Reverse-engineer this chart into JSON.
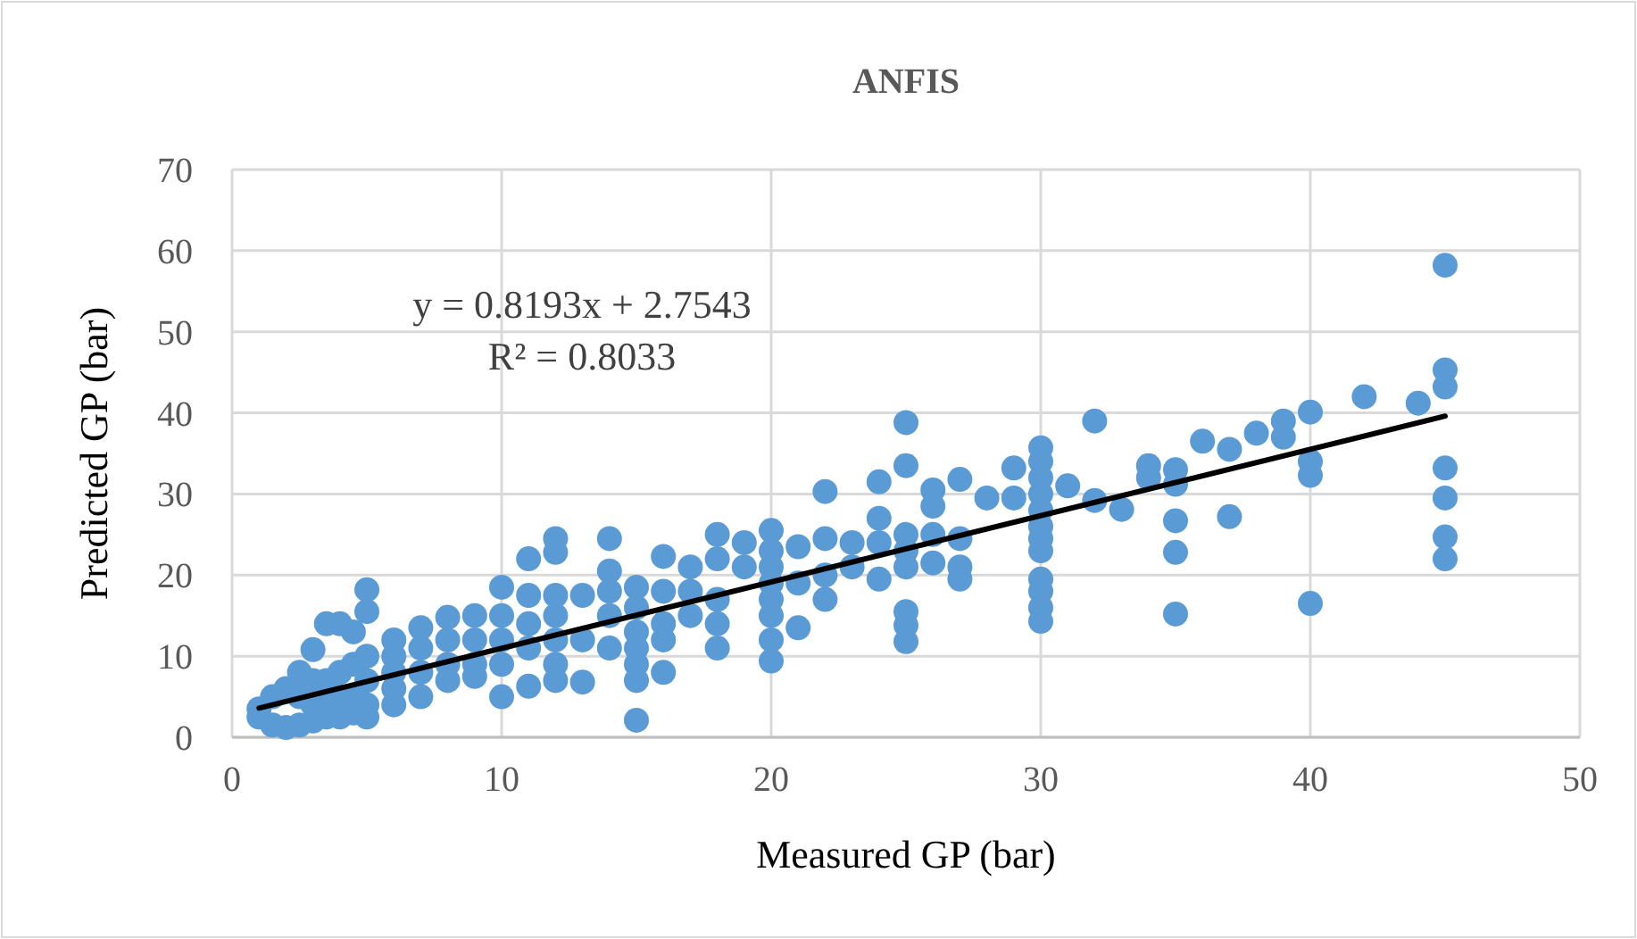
{
  "chart_data": {
    "type": "scatter",
    "title": "ANFIS",
    "xlabel": "Measured GP (bar)",
    "ylabel": "Predicted GP (bar)",
    "xlim": [
      0,
      50
    ],
    "xticks": [
      0,
      10,
      20,
      30,
      40,
      50
    ],
    "ylim": [
      0,
      70
    ],
    "yticks": [
      0,
      10,
      20,
      30,
      40,
      50,
      60,
      70
    ],
    "grid": true,
    "annotations": [
      "y = 0.8193x + 2.7543",
      "R² = 0.8033"
    ],
    "series": [
      {
        "marker": "circle",
        "color": "#5b9bd5",
        "x": [
          45,
          45,
          45,
          45,
          45,
          45,
          45,
          44,
          42,
          40,
          40,
          40,
          40,
          39,
          39,
          38,
          37,
          37,
          36,
          35,
          35,
          35,
          35,
          35,
          34,
          34,
          33,
          32,
          32,
          31,
          30,
          30,
          30,
          30,
          30,
          30,
          30,
          30,
          30,
          30,
          30,
          30,
          29,
          29,
          28,
          27,
          27,
          27,
          27,
          26,
          26,
          26,
          26,
          25,
          25,
          25,
          25,
          25,
          25,
          25,
          25,
          24,
          24,
          24,
          24,
          23,
          23,
          22,
          22,
          22,
          22,
          21,
          21,
          21,
          20,
          20,
          20,
          20,
          20,
          20,
          20,
          20,
          19,
          19,
          18,
          18,
          18,
          18,
          18,
          17,
          17,
          17,
          16,
          16,
          16,
          16,
          16,
          15,
          15,
          15,
          15,
          15,
          15,
          15,
          14,
          14,
          14,
          14,
          14,
          13,
          13,
          13,
          12,
          12,
          12,
          12,
          12,
          12,
          12,
          11,
          11,
          11,
          11,
          11,
          10,
          10,
          10,
          10,
          10,
          9,
          9,
          9,
          9,
          8,
          8,
          8,
          8,
          7,
          7,
          7,
          7,
          6,
          6,
          6,
          6,
          6,
          5,
          5,
          5,
          5,
          5,
          5,
          4.5,
          4.5,
          4.5,
          4.5,
          4,
          4,
          4,
          4,
          3.5,
          3.5,
          3.5,
          3.5,
          3,
          3,
          3,
          3,
          2.5,
          2.5,
          2.5,
          2,
          2,
          1.5,
          1.5,
          1,
          1
        ],
        "values": [
          58.2,
          45.3,
          43.2,
          33.2,
          29.5,
          24.7,
          22,
          41.2,
          42,
          40.1,
          34,
          32.3,
          16.5,
          39,
          37,
          37.5,
          35.5,
          27.2,
          36.5,
          33,
          31.2,
          26.7,
          22.8,
          15.2,
          33.5,
          32,
          28.1,
          39,
          29.2,
          31,
          35.7,
          34,
          32,
          30,
          28,
          26,
          24.5,
          23,
          19.5,
          18,
          16,
          14.3,
          33.2,
          29.5,
          29.5,
          31.8,
          24.5,
          21,
          19.5,
          30.5,
          28.5,
          25,
          21.5,
          38.8,
          33.5,
          25,
          23,
          21,
          15.5,
          13.8,
          11.8,
          31.5,
          27,
          24,
          19.5,
          24,
          21,
          30.3,
          24.5,
          20,
          17,
          23.5,
          19,
          13.5,
          25.5,
          23,
          21,
          19,
          17,
          15,
          12,
          9.4,
          24,
          21,
          25,
          22,
          17,
          14,
          11,
          21,
          18,
          15,
          22.3,
          18,
          14,
          12,
          8,
          18.5,
          16,
          13,
          11,
          9,
          7,
          2.1,
          24.5,
          20.5,
          18,
          15,
          11,
          17.5,
          12,
          6.8,
          24.5,
          22.8,
          17.5,
          15,
          12,
          9,
          7,
          22,
          17.5,
          14,
          11,
          6.3,
          18.5,
          15,
          12,
          9,
          5,
          15,
          12,
          9,
          7.5,
          14.8,
          12,
          9,
          7,
          13.5,
          11,
          8,
          5,
          12,
          10,
          8,
          6,
          4,
          18.2,
          15.5,
          10,
          7,
          4,
          2.5,
          13,
          9,
          5,
          3,
          14,
          8,
          5,
          2.5,
          14,
          7,
          4,
          2.5,
          10.8,
          7,
          4,
          2,
          8,
          5,
          1.5,
          6,
          1.2,
          5,
          1.5,
          3.5,
          2.5
        ]
      },
      {
        "type": "line",
        "marker": "none",
        "color": "#000000",
        "x": [
          1,
          45
        ],
        "values": [
          3.6,
          39.6
        ]
      }
    ]
  }
}
